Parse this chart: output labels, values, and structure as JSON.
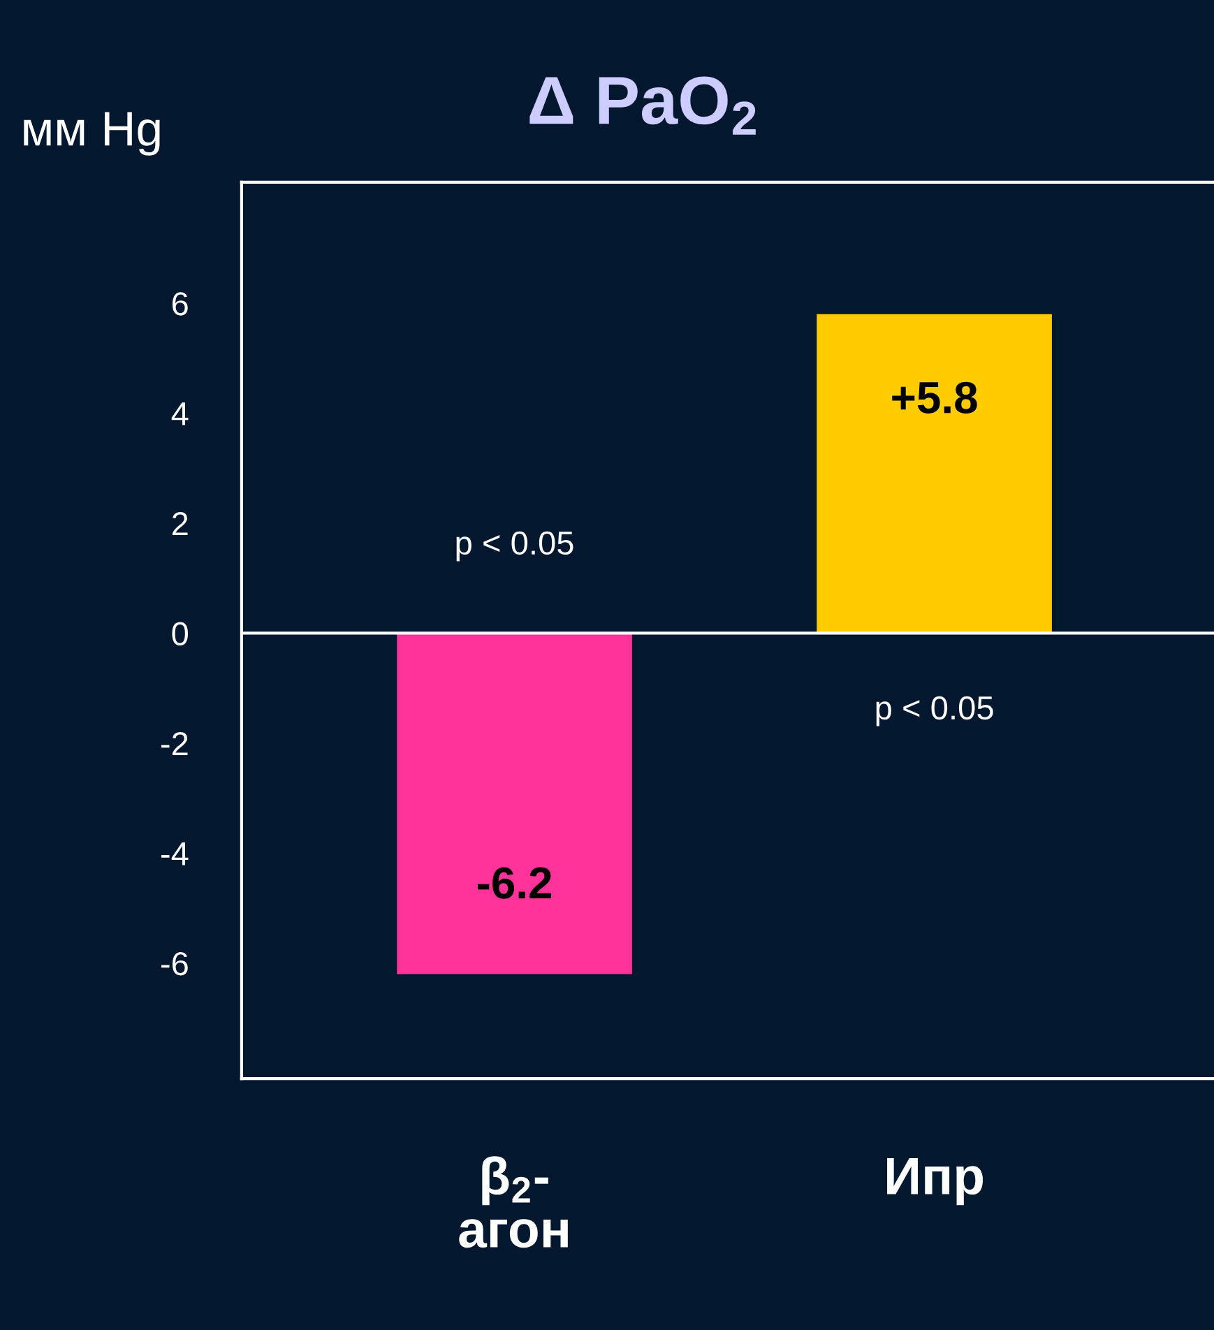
{
  "chart_data": {
    "type": "bar",
    "title": "Δ PaO$_{2}$",
    "ylabel": "мм Hg",
    "categories": [
      "β$_{2}$-\nагон",
      "Ипр"
    ],
    "values": [
      -6.2,
      5.8
    ],
    "colors": [
      "#ff3399",
      "#ffcc00"
    ],
    "value_labels": [
      "-6.2",
      "+5.8"
    ],
    "ylim": [
      -8.1,
      8.2
    ],
    "yticks": [
      -6,
      -4,
      -2,
      0,
      2,
      4,
      6
    ],
    "ref_lines": [
      {
        "axis": "y",
        "value": 0,
        "color": "#ffffff"
      }
    ],
    "annotations": [
      "p < 0.05",
      "p < 0.05"
    ],
    "grid": false,
    "legend": false
  }
}
